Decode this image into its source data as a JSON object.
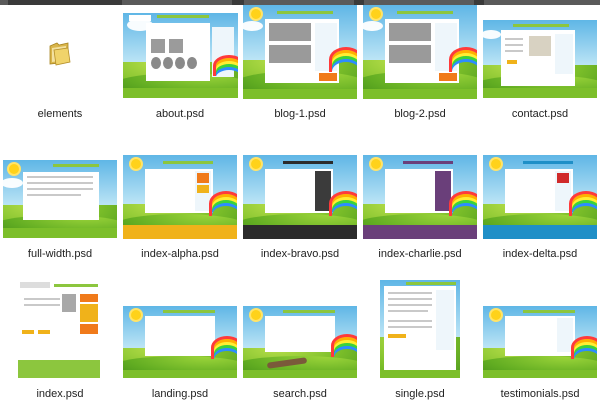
{
  "files": [
    {
      "name": "elements",
      "kind": "folder",
      "accent": "#e8c95a"
    },
    {
      "name": "about.psd",
      "kind": "psd",
      "accent": "#8cc63e"
    },
    {
      "name": "blog-1.psd",
      "kind": "psd",
      "accent": "#8cc63e"
    },
    {
      "name": "blog-2.psd",
      "kind": "psd",
      "accent": "#8cc63e"
    },
    {
      "name": "contact.psd",
      "kind": "psd",
      "accent": "#8cc63e"
    },
    {
      "name": "full-width.psd",
      "kind": "psd",
      "accent": "#8cc63e"
    },
    {
      "name": "index-alpha.psd",
      "kind": "psd",
      "accent": "#f0b21a"
    },
    {
      "name": "index-bravo.psd",
      "kind": "psd",
      "accent": "#2b2b2b"
    },
    {
      "name": "index-charlie.psd",
      "kind": "psd",
      "accent": "#6a3f7a"
    },
    {
      "name": "index-delta.psd",
      "kind": "psd",
      "accent": "#1f8fc7"
    },
    {
      "name": "index.psd",
      "kind": "psd",
      "accent": "#8cc63e"
    },
    {
      "name": "landing.psd",
      "kind": "psd",
      "accent": "#8cc63e"
    },
    {
      "name": "search.psd",
      "kind": "psd",
      "accent": "#8cc63e"
    },
    {
      "name": "single.psd",
      "kind": "psd",
      "accent": "#8cc63e"
    },
    {
      "name": "testimonials.psd",
      "kind": "psd",
      "accent": "#8cc63e"
    }
  ]
}
